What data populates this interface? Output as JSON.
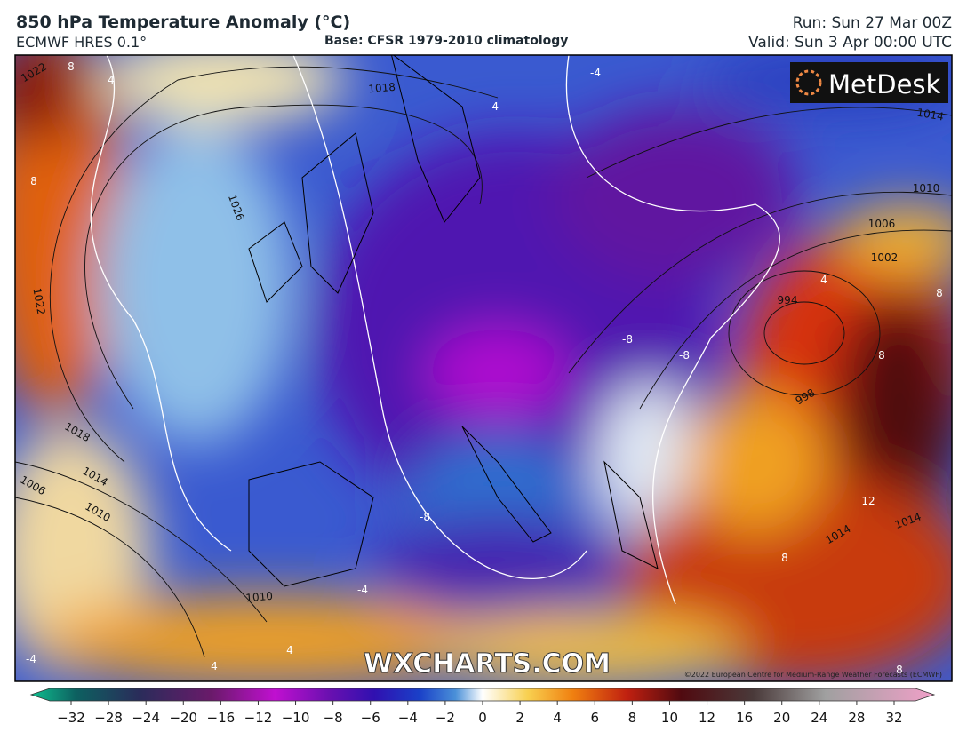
{
  "header": {
    "title": "850 hPa Temperature Anomaly (°C)",
    "model": "ECMWF HRES 0.1°",
    "base": "Base: CFSR 1979-2010 climatology",
    "run": "Run: Sun 27 Mar 00Z",
    "valid": "Valid: Sun 3 Apr 00:00 UTC"
  },
  "map": {
    "logo": "MetDesk",
    "watermark": "WXCHARTS.COM",
    "copyright": "©2022 European Centre for Medium-Range Weather Forecasts (ECMWF)",
    "pressure_labels": [
      "1018",
      "1026",
      "1022",
      "1018",
      "1014",
      "1010",
      "1006",
      "1010",
      "1014",
      "1010",
      "1006",
      "1002",
      "994",
      "998",
      "1014",
      "1014",
      "1022"
    ],
    "anomaly_labels": [
      "8",
      "4",
      "-4",
      "-4",
      "8",
      "4",
      "8",
      "-8",
      "-8",
      "8",
      "-8",
      "-4",
      "12",
      "8",
      "4",
      "-4",
      "4",
      "8"
    ]
  },
  "colorbar": {
    "ticks": [
      "−32",
      "−28",
      "−24",
      "−20",
      "−16",
      "−12",
      "−10",
      "−8",
      "−6",
      "−4",
      "−2",
      "0",
      "2",
      "4",
      "6",
      "8",
      "10",
      "12",
      "16",
      "20",
      "24",
      "28",
      "32"
    ]
  }
}
